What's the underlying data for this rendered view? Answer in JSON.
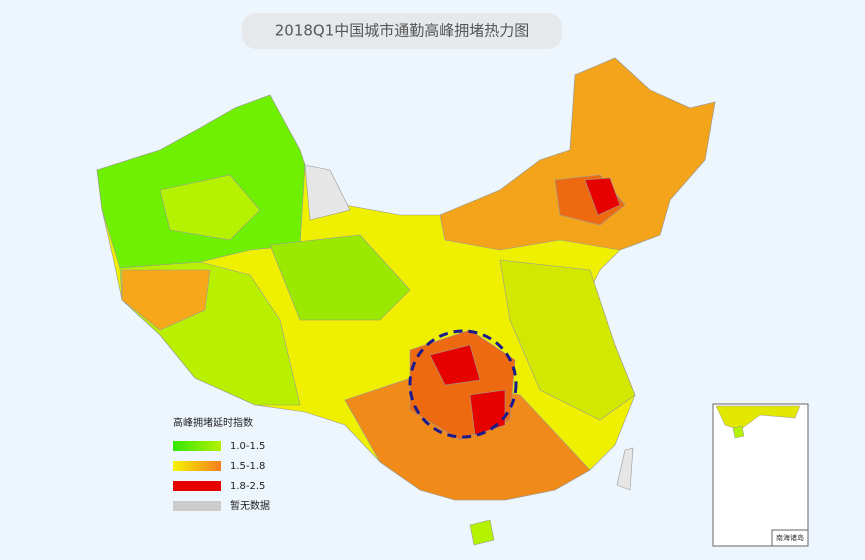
{
  "title": "2018Q1中国城市通勤高峰拥堵热力图",
  "legend": {
    "title": "高峰拥堵延时指数",
    "items": [
      {
        "label": "1.0-1.5",
        "colors": [
          "#33e600",
          "#b4f000"
        ]
      },
      {
        "label": "1.5-1.8",
        "colors": [
          "#f5f500",
          "#f57d1e"
        ]
      },
      {
        "label": "1.8-2.5",
        "colors": [
          "#e60000",
          "#e60000"
        ]
      },
      {
        "label": "暂无数据",
        "colors": [
          "#cccccc",
          "#cccccc"
        ]
      }
    ]
  },
  "inset": {
    "label": "南海诸岛"
  }
}
